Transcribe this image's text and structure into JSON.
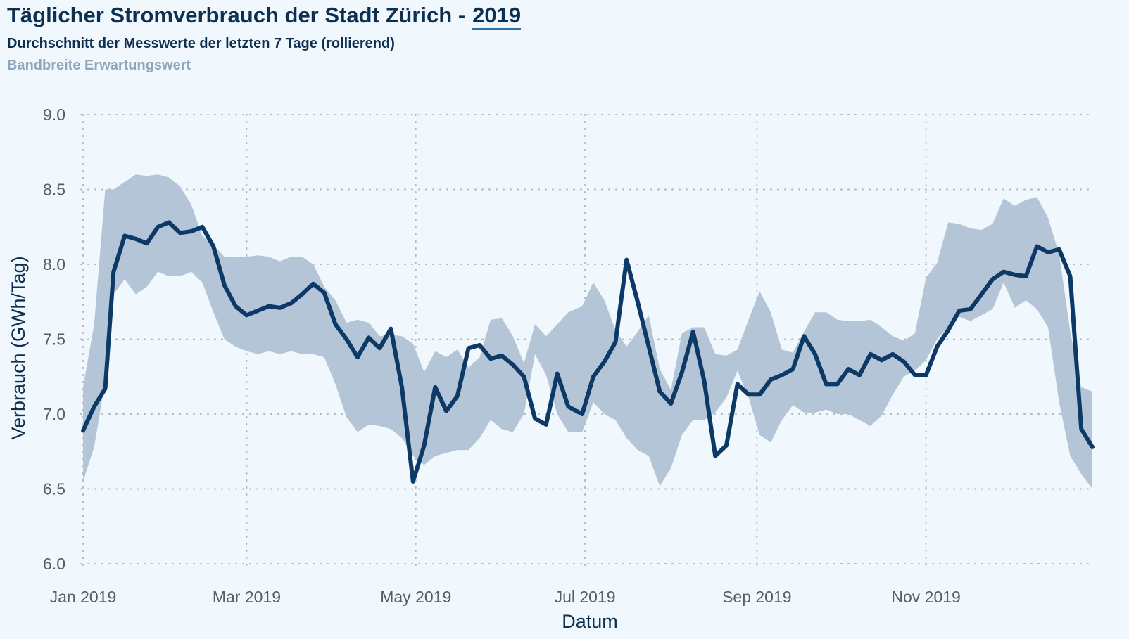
{
  "header": {
    "title": "Täglicher Stromverbrauch der Stadt Zürich -",
    "year": "2019",
    "subtitle": "Durchschnitt der Messwerte der letzten 7 Tage (rollierend)",
    "band_label": "Bandbreite Erwartungswert"
  },
  "colors": {
    "line": "#0d3966",
    "band": "#b3c5d6",
    "grid": "#aeb6bd",
    "background": "#f0f7fd"
  },
  "chart_data": {
    "type": "line",
    "xlabel": "Datum",
    "ylabel": "Verbrauch (GWh/Tag)",
    "ylim": [
      6.0,
      9.0
    ],
    "yticks": [
      6.0,
      6.5,
      7.0,
      7.5,
      8.0,
      8.5,
      9.0
    ],
    "ytick_labels": [
      "6.0",
      "6.5",
      "7.0",
      "7.5",
      "8.0",
      "8.5",
      "9.0"
    ],
    "xlim": [
      "2019-01-01",
      "2019-12-31"
    ],
    "xticks": [
      "2019-01-01",
      "2019-03-01",
      "2019-05-01",
      "2019-07-01",
      "2019-09-01",
      "2019-11-01"
    ],
    "xtick_labels": [
      "Jan 2019",
      "Mar 2019",
      "May 2019",
      "Jul 2019",
      "Sep 2019",
      "Nov 2019"
    ],
    "grid": true,
    "series": [
      {
        "name": "Durchschnitt der Messwerte der letzten 7 Tage (rollierend)",
        "x": [
          "2019-01-01",
          "2019-01-05",
          "2019-01-09",
          "2019-01-12",
          "2019-01-16",
          "2019-01-20",
          "2019-01-24",
          "2019-01-28",
          "2019-02-01",
          "2019-02-05",
          "2019-02-09",
          "2019-02-13",
          "2019-02-17",
          "2019-02-21",
          "2019-02-25",
          "2019-03-01",
          "2019-03-05",
          "2019-03-09",
          "2019-03-13",
          "2019-03-17",
          "2019-03-21",
          "2019-03-25",
          "2019-03-29",
          "2019-04-02",
          "2019-04-06",
          "2019-04-10",
          "2019-04-14",
          "2019-04-18",
          "2019-04-22",
          "2019-04-26",
          "2019-04-30",
          "2019-05-04",
          "2019-05-08",
          "2019-05-12",
          "2019-05-16",
          "2019-05-20",
          "2019-05-24",
          "2019-05-28",
          "2019-06-01",
          "2019-06-05",
          "2019-06-09",
          "2019-06-13",
          "2019-06-17",
          "2019-06-21",
          "2019-06-25",
          "2019-06-30",
          "2019-07-04",
          "2019-07-08",
          "2019-07-12",
          "2019-07-16",
          "2019-07-20",
          "2019-07-24",
          "2019-07-28",
          "2019-08-01",
          "2019-08-05",
          "2019-08-09",
          "2019-08-13",
          "2019-08-17",
          "2019-08-21",
          "2019-08-25",
          "2019-08-29",
          "2019-09-02",
          "2019-09-06",
          "2019-09-10",
          "2019-09-14",
          "2019-09-18",
          "2019-09-22",
          "2019-09-26",
          "2019-09-30",
          "2019-10-04",
          "2019-10-08",
          "2019-10-12",
          "2019-10-16",
          "2019-10-20",
          "2019-10-24",
          "2019-10-28",
          "2019-11-01",
          "2019-11-05",
          "2019-11-09",
          "2019-11-13",
          "2019-11-17",
          "2019-11-21",
          "2019-11-25",
          "2019-11-29",
          "2019-12-03",
          "2019-12-07",
          "2019-12-11",
          "2019-12-15",
          "2019-12-19",
          "2019-12-23",
          "2019-12-27",
          "2019-12-31"
        ],
        "values": [
          6.89,
          7.05,
          7.17,
          7.95,
          8.19,
          8.17,
          8.14,
          8.25,
          8.28,
          8.21,
          8.22,
          8.25,
          8.12,
          7.86,
          7.72,
          7.66,
          7.69,
          7.72,
          7.71,
          7.74,
          7.8,
          7.87,
          7.81,
          7.6,
          7.5,
          7.38,
          7.51,
          7.44,
          7.57,
          7.18,
          6.55,
          6.79,
          7.18,
          7.02,
          7.12,
          7.44,
          7.46,
          7.37,
          7.39,
          7.33,
          7.25,
          6.97,
          6.93,
          7.27,
          7.05,
          7.0,
          7.25,
          7.35,
          7.48,
          8.03,
          7.75,
          7.45,
          7.15,
          7.07,
          7.28,
          7.55,
          7.22,
          6.72,
          6.79,
          7.2,
          7.13,
          7.13,
          7.23,
          7.26,
          7.3,
          7.52,
          7.4,
          7.2,
          7.2,
          7.3,
          7.26,
          7.4,
          7.36,
          7.4,
          7.35,
          7.26,
          7.26,
          7.45,
          7.56,
          7.69,
          7.7,
          7.8,
          7.9,
          7.95,
          7.93,
          7.92,
          8.12,
          8.08,
          8.1,
          7.92,
          6.9,
          6.78
        ]
      },
      {
        "name": "Bandbreite Erwartungswert",
        "x": [
          "2019-01-01",
          "2019-01-05",
          "2019-01-09",
          "2019-01-12",
          "2019-01-16",
          "2019-01-20",
          "2019-01-24",
          "2019-01-28",
          "2019-02-01",
          "2019-02-05",
          "2019-02-09",
          "2019-02-13",
          "2019-02-17",
          "2019-02-21",
          "2019-02-25",
          "2019-03-01",
          "2019-03-05",
          "2019-03-09",
          "2019-03-13",
          "2019-03-17",
          "2019-03-21",
          "2019-03-25",
          "2019-03-29",
          "2019-04-02",
          "2019-04-06",
          "2019-04-10",
          "2019-04-14",
          "2019-04-18",
          "2019-04-22",
          "2019-04-26",
          "2019-04-30",
          "2019-05-04",
          "2019-05-08",
          "2019-05-12",
          "2019-05-16",
          "2019-05-20",
          "2019-05-24",
          "2019-05-28",
          "2019-06-01",
          "2019-06-05",
          "2019-06-09",
          "2019-06-13",
          "2019-06-17",
          "2019-06-21",
          "2019-06-25",
          "2019-06-30",
          "2019-07-04",
          "2019-07-08",
          "2019-07-12",
          "2019-07-16",
          "2019-07-20",
          "2019-07-24",
          "2019-07-28",
          "2019-08-01",
          "2019-08-05",
          "2019-08-09",
          "2019-08-13",
          "2019-08-17",
          "2019-08-21",
          "2019-08-25",
          "2019-08-29",
          "2019-09-02",
          "2019-09-06",
          "2019-09-10",
          "2019-09-14",
          "2019-09-18",
          "2019-09-22",
          "2019-09-26",
          "2019-09-30",
          "2019-10-04",
          "2019-10-08",
          "2019-10-12",
          "2019-10-16",
          "2019-10-20",
          "2019-10-24",
          "2019-10-28",
          "2019-11-01",
          "2019-11-05",
          "2019-11-09",
          "2019-11-13",
          "2019-11-17",
          "2019-11-21",
          "2019-11-25",
          "2019-11-29",
          "2019-12-03",
          "2019-12-07",
          "2019-12-11",
          "2019-12-15",
          "2019-12-19",
          "2019-12-23",
          "2019-12-27",
          "2019-12-31"
        ],
        "lower": [
          6.55,
          6.78,
          7.22,
          7.8,
          7.9,
          7.8,
          7.85,
          7.95,
          7.92,
          7.92,
          7.95,
          7.88,
          7.68,
          7.5,
          7.45,
          7.42,
          7.4,
          7.42,
          7.4,
          7.42,
          7.4,
          7.4,
          7.38,
          7.2,
          6.98,
          6.88,
          6.93,
          6.92,
          6.9,
          6.84,
          6.72,
          6.66,
          6.72,
          6.74,
          6.76,
          6.76,
          6.84,
          6.96,
          6.9,
          6.88,
          7.0,
          7.4,
          7.26,
          7.0,
          6.88,
          6.88,
          7.08,
          7.0,
          6.96,
          6.84,
          6.76,
          6.72,
          6.52,
          6.64,
          6.86,
          6.96,
          6.96,
          7.01,
          7.11,
          7.29,
          7.11,
          6.86,
          6.81,
          6.96,
          7.06,
          7.01,
          7.01,
          7.03,
          7.0,
          7.0,
          6.96,
          6.92,
          6.99,
          7.13,
          7.25,
          7.29,
          7.36,
          7.5,
          7.58,
          7.65,
          7.62,
          7.66,
          7.7,
          7.88,
          7.71,
          7.76,
          7.7,
          7.58,
          7.08,
          6.72,
          6.6,
          6.5
        ],
        "upper": [
          7.18,
          7.6,
          8.5,
          8.5,
          8.55,
          8.6,
          8.59,
          8.6,
          8.58,
          8.52,
          8.4,
          8.19,
          8.13,
          8.05,
          8.05,
          8.05,
          8.06,
          8.05,
          8.02,
          8.05,
          8.05,
          8.0,
          7.85,
          7.76,
          7.61,
          7.63,
          7.61,
          7.52,
          7.53,
          7.52,
          7.47,
          7.28,
          7.42,
          7.38,
          7.43,
          7.31,
          7.38,
          7.63,
          7.64,
          7.52,
          7.34,
          7.6,
          7.52,
          7.6,
          7.68,
          7.72,
          7.88,
          7.76,
          7.56,
          7.45,
          7.55,
          7.66,
          7.3,
          7.16,
          7.54,
          7.58,
          7.58,
          7.4,
          7.39,
          7.43,
          7.63,
          7.82,
          7.68,
          7.43,
          7.41,
          7.55,
          7.68,
          7.68,
          7.63,
          7.62,
          7.62,
          7.63,
          7.58,
          7.52,
          7.49,
          7.54,
          7.91,
          8.01,
          8.28,
          8.27,
          8.24,
          8.23,
          8.27,
          8.44,
          8.39,
          8.43,
          8.45,
          8.31,
          8.07,
          7.55,
          7.18,
          7.15
        ]
      }
    ]
  }
}
